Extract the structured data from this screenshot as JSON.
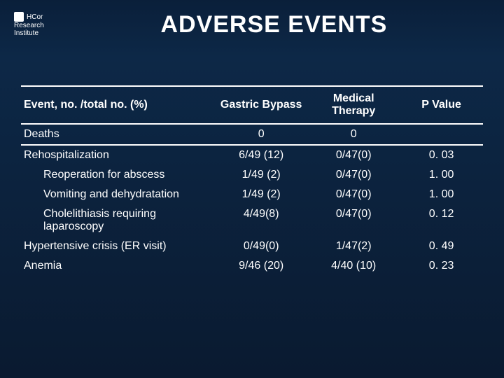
{
  "header": {
    "logo_brand": "HCor",
    "logo_sub1": "Research",
    "logo_sub2": "Institute",
    "title": "ADVERSE EVENTS"
  },
  "table": {
    "columns": {
      "event": "Event, no. /total no. (%)",
      "gastric": "Gastric Bypass",
      "medical": "Medical Therapy",
      "pvalue": "P Value"
    },
    "rows": [
      {
        "label": "Deaths",
        "a": "0",
        "b": "0",
        "p": "",
        "indent": false,
        "sep": true
      },
      {
        "label": "Rehospitalization",
        "a": "6/49 (12)",
        "b": "0/47(0)",
        "p": "0. 03",
        "indent": false,
        "sep": false
      },
      {
        "label": "Reoperation for abscess",
        "a": "1/49 (2)",
        "b": "0/47(0)",
        "p": "1. 00",
        "indent": true,
        "sep": false
      },
      {
        "label": "Vomiting and dehydratation",
        "a": "1/49 (2)",
        "b": "0/47(0)",
        "p": "1. 00",
        "indent": true,
        "sep": false
      },
      {
        "label": "Cholelithiasis requiring laparoscopy",
        "a": "4/49(8)",
        "b": "0/47(0)",
        "p": "0. 12",
        "indent": true,
        "sep": false
      },
      {
        "label": "Hypertensive crisis (ER visit)",
        "a": "0/49(0)",
        "b": "1/47(2)",
        "p": "0. 49",
        "indent": false,
        "sep": false
      },
      {
        "label": "Anemia",
        "a": "9/46 (20)",
        "b": "4/40 (10)",
        "p": "0. 23",
        "indent": false,
        "sep": false
      }
    ]
  },
  "style": {
    "bg_gradient_top": "#0a1f3a",
    "bg_gradient_bottom": "#0a1a30",
    "text_color": "#ffffff",
    "border_color": "#ffffff",
    "title_fontsize": 34,
    "body_fontsize": 16
  }
}
